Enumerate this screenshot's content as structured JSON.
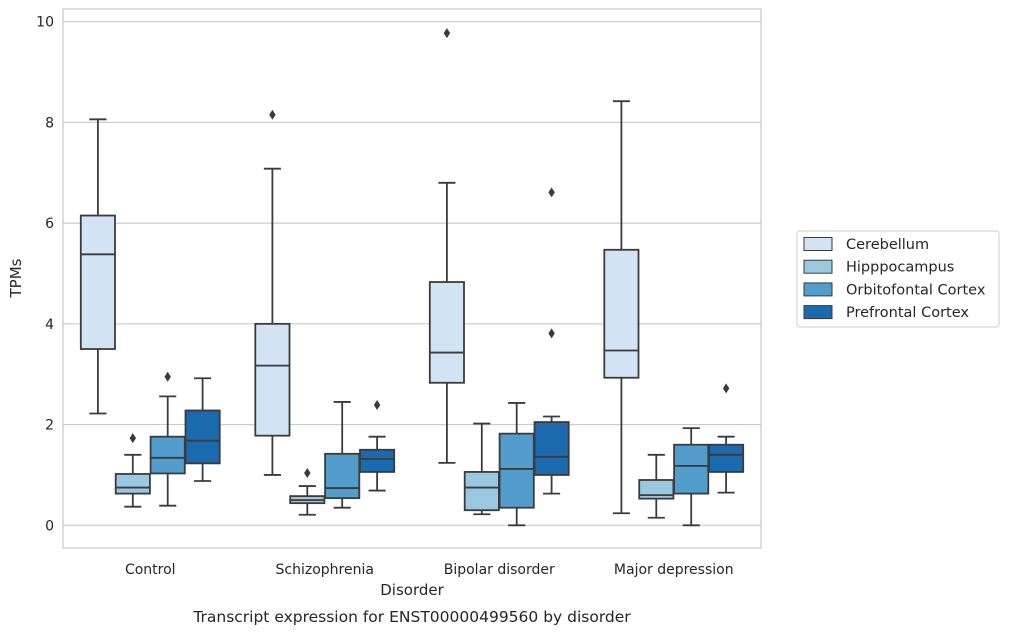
{
  "caption": "Transcript expression for ENST00000499560 by disorder",
  "chart_data": {
    "type": "box",
    "xlabel": "Disorder",
    "ylabel": "TPMs",
    "ylim": [
      -0.45,
      10.25
    ],
    "yticks": [
      0,
      2,
      4,
      6,
      8,
      10
    ],
    "grid": "horizontal",
    "legend_position": "right",
    "categories": [
      "Control",
      "Schizophrenia",
      "Bipolar disorder",
      "Major depression"
    ],
    "series": [
      {
        "name": "Cerebellum",
        "color": "#d2e3f3",
        "boxes": [
          {
            "whisker_low": 2.22,
            "q1": 3.5,
            "median": 5.38,
            "q3": 6.15,
            "whisker_high": 8.06,
            "outliers": []
          },
          {
            "whisker_low": 1.0,
            "q1": 1.78,
            "median": 3.17,
            "q3": 4.0,
            "whisker_high": 7.08,
            "outliers": [
              8.15
            ]
          },
          {
            "whisker_low": 1.24,
            "q1": 2.83,
            "median": 3.43,
            "q3": 4.83,
            "whisker_high": 6.8,
            "outliers": [
              9.77
            ]
          },
          {
            "whisker_low": 0.24,
            "q1": 2.93,
            "median": 3.47,
            "q3": 5.47,
            "whisker_high": 8.42,
            "outliers": []
          }
        ]
      },
      {
        "name": "Hipppocampus",
        "color": "#9ac8e0",
        "boxes": [
          {
            "whisker_low": 0.37,
            "q1": 0.63,
            "median": 0.75,
            "q3": 1.02,
            "whisker_high": 1.4,
            "outliers": [
              1.73
            ]
          },
          {
            "whisker_low": 0.21,
            "q1": 0.44,
            "median": 0.5,
            "q3": 0.58,
            "whisker_high": 0.78,
            "outliers": [
              1.04
            ]
          },
          {
            "whisker_low": 0.22,
            "q1": 0.3,
            "median": 0.75,
            "q3": 1.06,
            "whisker_high": 2.02,
            "outliers": []
          },
          {
            "whisker_low": 0.15,
            "q1": 0.53,
            "median": 0.6,
            "q3": 0.9,
            "whisker_high": 1.4,
            "outliers": []
          }
        ]
      },
      {
        "name": "Orbitofontal Cortex",
        "color": "#529dcc",
        "boxes": [
          {
            "whisker_low": 0.39,
            "q1": 1.03,
            "median": 1.34,
            "q3": 1.76,
            "whisker_high": 2.56,
            "outliers": [
              2.95
            ]
          },
          {
            "whisker_low": 0.35,
            "q1": 0.54,
            "median": 0.74,
            "q3": 1.42,
            "whisker_high": 2.45,
            "outliers": []
          },
          {
            "whisker_low": 0.0,
            "q1": 0.35,
            "median": 1.12,
            "q3": 1.82,
            "whisker_high": 2.43,
            "outliers": []
          },
          {
            "whisker_low": 0.0,
            "q1": 0.63,
            "median": 1.18,
            "q3": 1.6,
            "whisker_high": 1.93,
            "outliers": []
          }
        ]
      },
      {
        "name": "Prefrontal Cortex",
        "color": "#1b69af",
        "boxes": [
          {
            "whisker_low": 0.88,
            "q1": 1.23,
            "median": 1.68,
            "q3": 2.28,
            "whisker_high": 2.92,
            "outliers": []
          },
          {
            "whisker_low": 0.69,
            "q1": 1.06,
            "median": 1.32,
            "q3": 1.5,
            "whisker_high": 1.76,
            "outliers": [
              2.39
            ]
          },
          {
            "whisker_low": 0.63,
            "q1": 1.0,
            "median": 1.36,
            "q3": 2.05,
            "whisker_high": 2.16,
            "outliers": [
              3.81,
              6.61
            ]
          },
          {
            "whisker_low": 0.65,
            "q1": 1.06,
            "median": 1.4,
            "q3": 1.6,
            "whisker_high": 1.76,
            "outliers": [
              2.72
            ]
          }
        ]
      }
    ]
  }
}
